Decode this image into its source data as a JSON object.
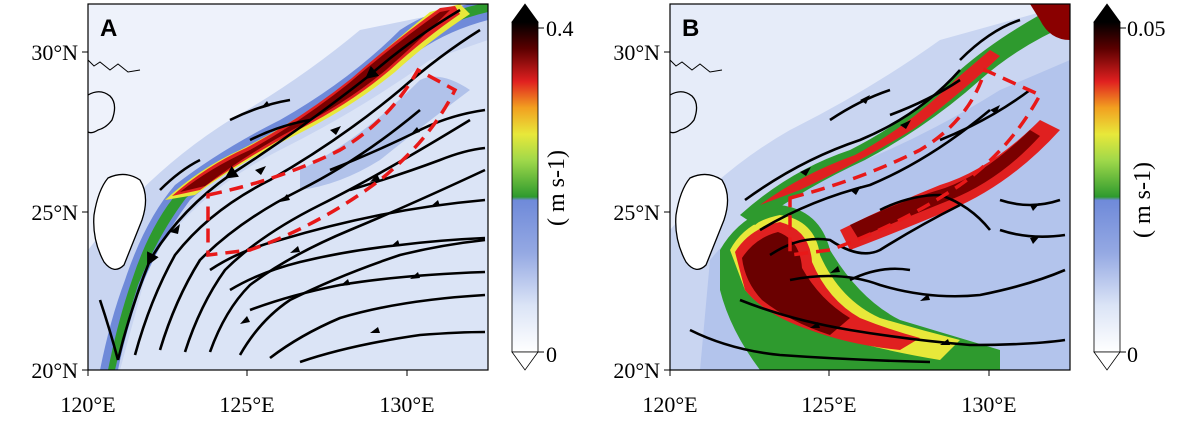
{
  "panels": [
    {
      "letter": "A",
      "colorbar": {
        "max_label": "0.4",
        "min_label": "0",
        "unit": "( m s-1)"
      }
    },
    {
      "letter": "B",
      "colorbar": {
        "max_label": "0.05",
        "min_label": "0",
        "unit": "( m s-1)"
      }
    }
  ],
  "axes": {
    "lon_ticks": [
      "120°E",
      "125°E",
      "130°E"
    ],
    "lat_ticks": [
      "20°N",
      "25°N",
      "30°N"
    ]
  },
  "colormap": [
    "#ffffff",
    "#dbe4f6",
    "#b9c8ee",
    "#95a9e3",
    "#6f8ad9",
    "#2e9a2e",
    "#5fbf3c",
    "#9fd84a",
    "#e8e83a",
    "#f2a020",
    "#e02020",
    "#b01010",
    "#5a0000",
    "#000000"
  ],
  "regions": [
    {
      "name": "red-dashed-box",
      "color": "#e81818"
    }
  ]
}
